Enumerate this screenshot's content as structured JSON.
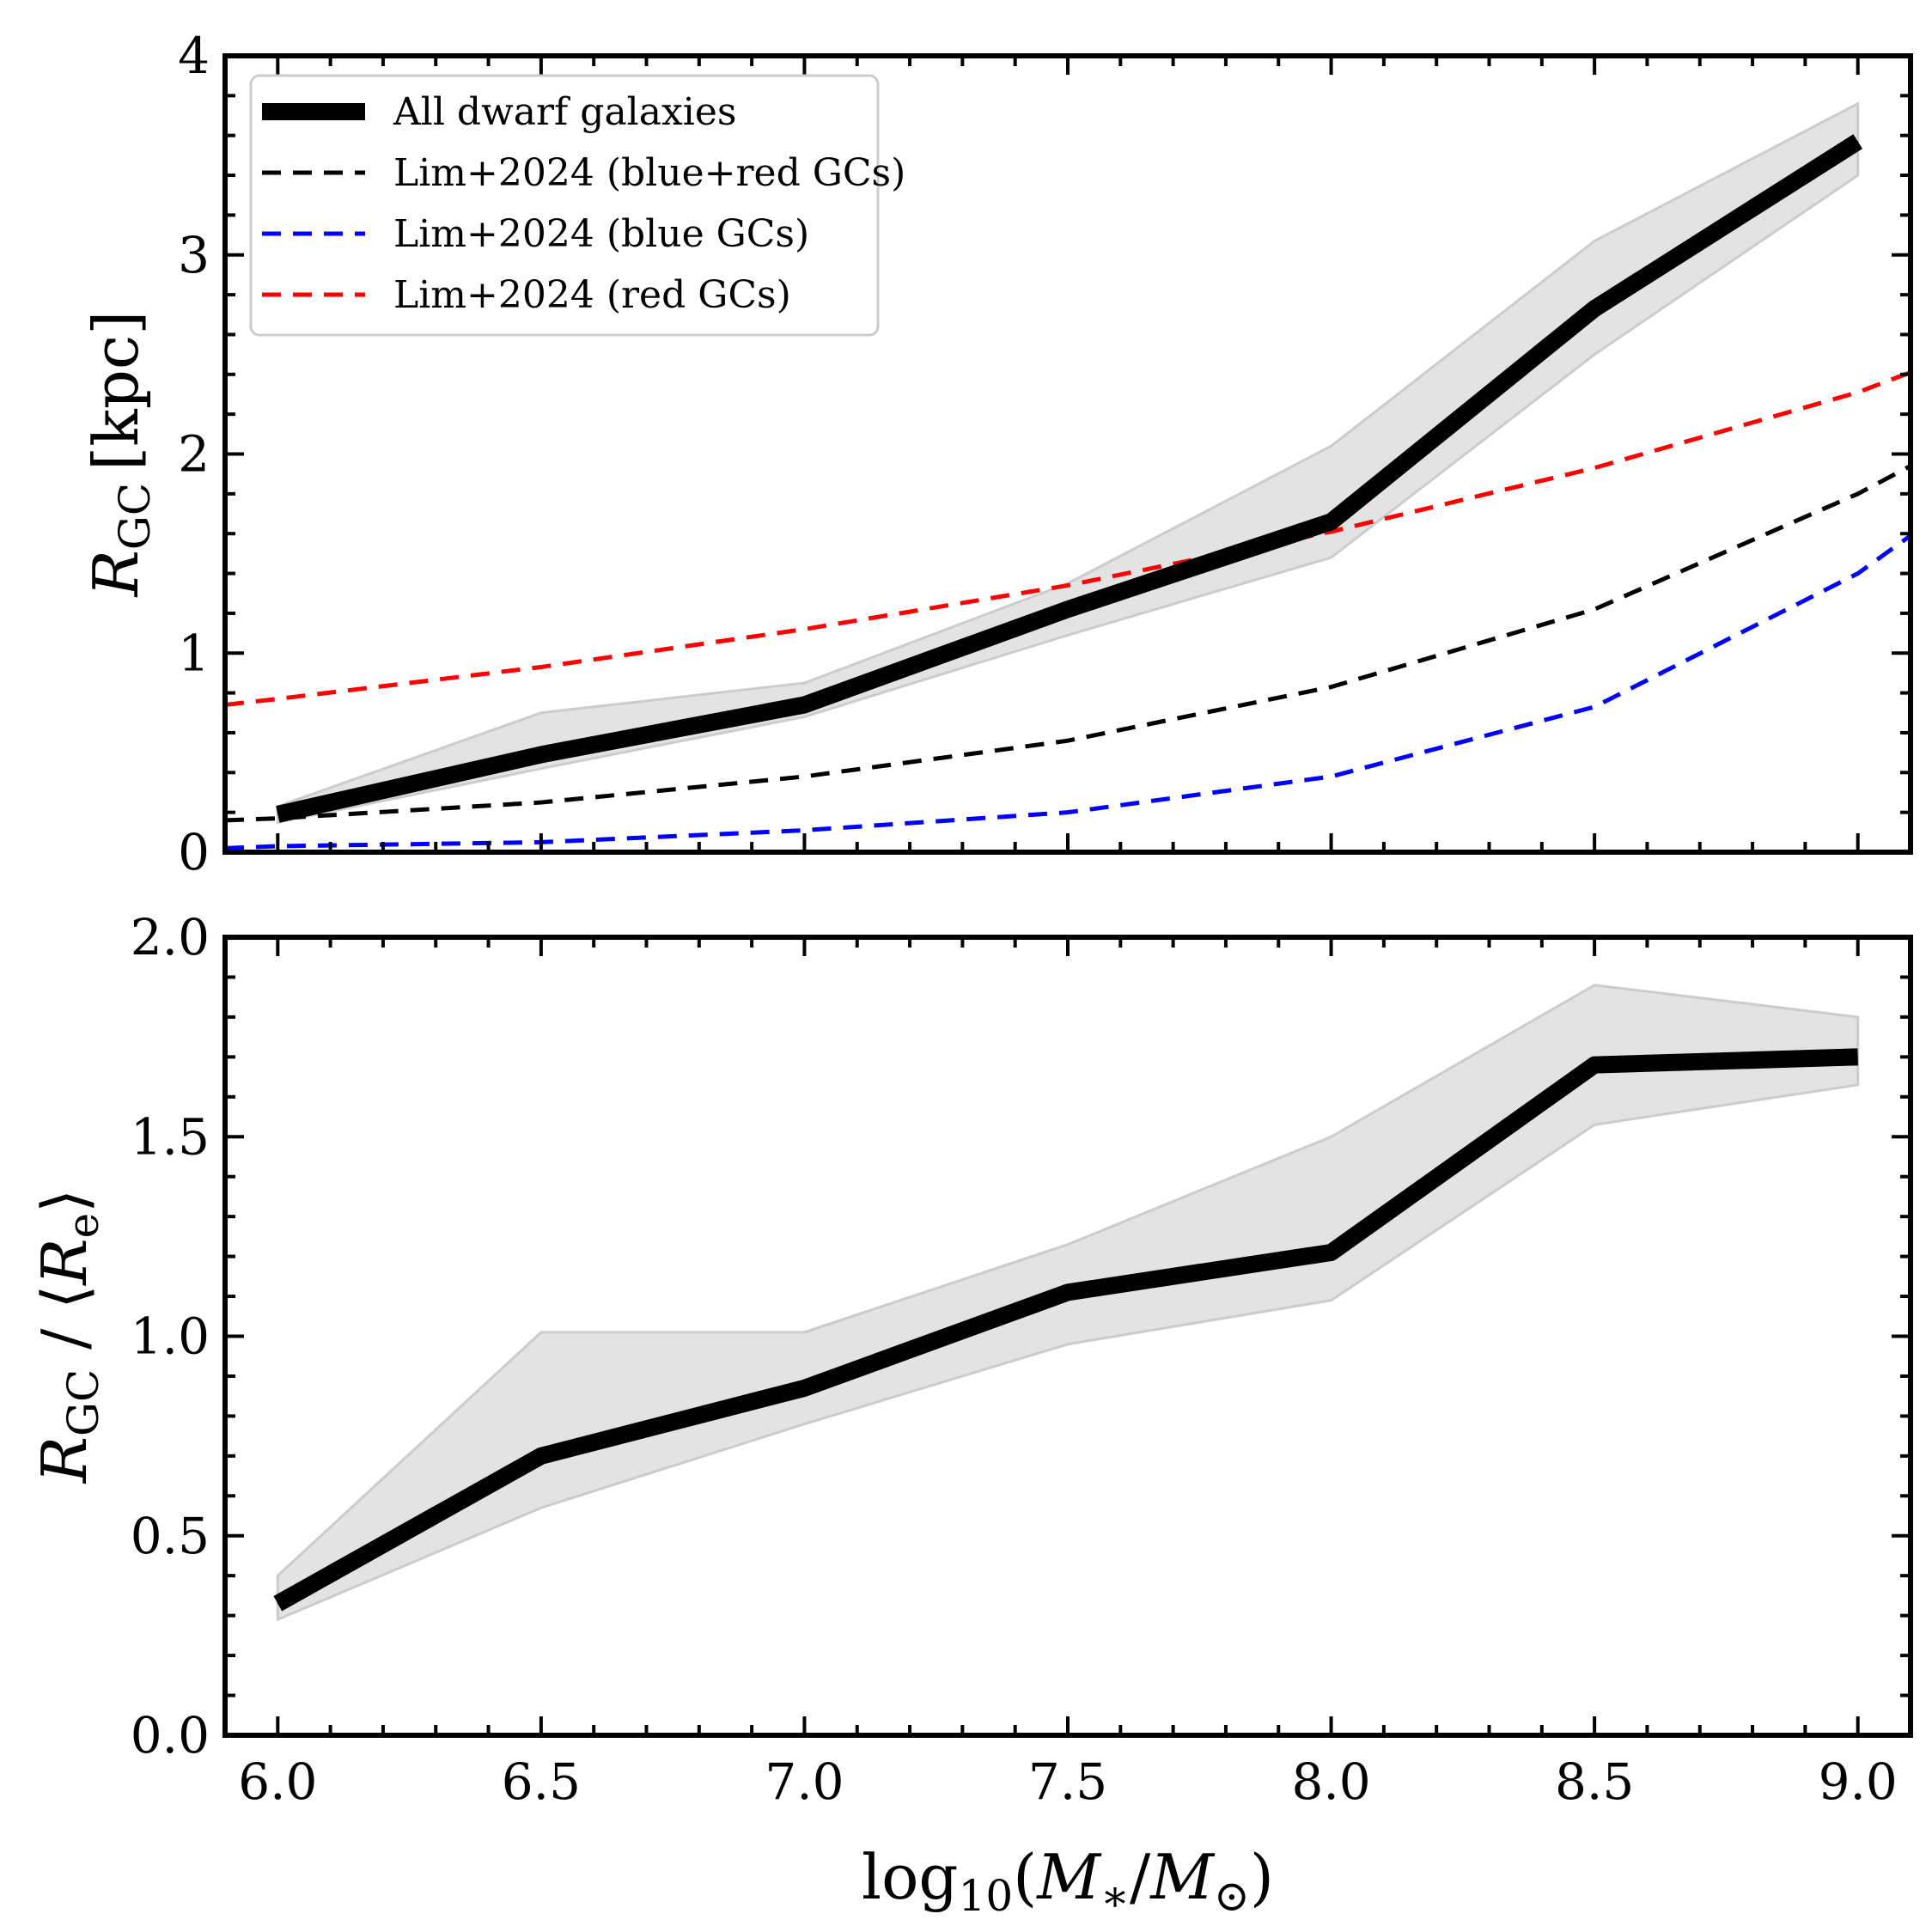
{
  "chart_data": [
    {
      "type": "line",
      "panel": "top",
      "ylabel": "R_GC [kpc]",
      "ylabel_parts": {
        "sym": "R",
        "sub": "GC",
        "unit": "[kpc]"
      },
      "xlim": [
        5.9,
        9.1
      ],
      "ylim": [
        0,
        4
      ],
      "xticks": [
        6.0,
        6.5,
        7.0,
        7.5,
        8.0,
        8.5,
        9.0
      ],
      "yticks": [
        0,
        1,
        2,
        3,
        4
      ],
      "ytick_labels": [
        "0",
        "1",
        "2",
        "3",
        "4"
      ],
      "legend_position": "top-left",
      "series": [
        {
          "name": "All dwarf galaxies",
          "color": "#000000",
          "style": "solid-thick",
          "x": [
            6.0,
            6.5,
            7.0,
            7.5,
            8.0,
            8.5,
            9.0
          ],
          "y": [
            0.19,
            0.49,
            0.74,
            1.22,
            1.66,
            2.73,
            3.57
          ],
          "band_lower": [
            0.15,
            0.42,
            0.68,
            1.09,
            1.48,
            2.5,
            3.4
          ],
          "band_upper": [
            0.23,
            0.7,
            0.85,
            1.35,
            2.04,
            3.07,
            3.76
          ]
        },
        {
          "name": "Lim+2024 (blue+red GCs)",
          "color": "#000000",
          "style": "dashed",
          "x": [
            5.9,
            6.0,
            6.5,
            7.0,
            7.5,
            8.0,
            8.5,
            9.0,
            9.1
          ],
          "y": [
            0.16,
            0.17,
            0.25,
            0.38,
            0.56,
            0.83,
            1.22,
            1.8,
            1.94
          ]
        },
        {
          "name": "Lim+2024 (blue GCs)",
          "color": "#0000ff",
          "style": "dashed",
          "x": [
            5.9,
            6.0,
            6.5,
            7.0,
            7.5,
            8.0,
            8.5,
            9.0,
            9.1
          ],
          "y": [
            0.02,
            0.03,
            0.05,
            0.11,
            0.2,
            0.38,
            0.73,
            1.4,
            1.59
          ]
        },
        {
          "name": "Lim+2024 (red GCs)",
          "color": "#ff0000",
          "style": "dashed",
          "x": [
            5.9,
            6.0,
            6.5,
            7.0,
            7.5,
            8.0,
            8.5,
            9.0,
            9.1
          ],
          "y": [
            0.74,
            0.77,
            0.93,
            1.12,
            1.34,
            1.61,
            1.93,
            2.31,
            2.41
          ]
        }
      ]
    },
    {
      "type": "line",
      "panel": "bottom",
      "ylabel": "R_GC / ⟨R_e⟩",
      "ylabel_parts": {
        "sym": "R",
        "sub": "GC",
        "mid": " / ⟨",
        "sym2": "R",
        "sub2": "e",
        "end": "⟩"
      },
      "xlabel": "log10(M*/M⊙)",
      "xlabel_parts": {
        "pre": "log",
        "sub": "10",
        "open": "(",
        "sym": "M",
        "sub2": "∗",
        "slash": "/",
        "sym2": "M",
        "sub3": "⊙",
        "close": ")"
      },
      "xlim": [
        5.9,
        9.1
      ],
      "ylim": [
        0,
        2
      ],
      "xticks": [
        6.0,
        6.5,
        7.0,
        7.5,
        8.0,
        8.5,
        9.0
      ],
      "xtick_labels": [
        "6.0",
        "6.5",
        "7.0",
        "7.5",
        "8.0",
        "8.5",
        "9.0"
      ],
      "yticks": [
        0.0,
        0.5,
        1.0,
        1.5,
        2.0
      ],
      "ytick_labels": [
        "0.0",
        "0.5",
        "1.0",
        "1.5",
        "2.0"
      ],
      "series": [
        {
          "name": "All dwarf galaxies",
          "color": "#000000",
          "style": "solid-thick",
          "x": [
            6.0,
            6.5,
            7.0,
            7.5,
            8.0,
            8.5,
            9.0
          ],
          "y": [
            0.33,
            0.7,
            0.87,
            1.11,
            1.21,
            1.68,
            1.7
          ],
          "band_lower": [
            0.29,
            0.57,
            0.78,
            0.98,
            1.09,
            1.53,
            1.63
          ],
          "band_upper": [
            0.4,
            1.01,
            1.01,
            1.23,
            1.5,
            1.88,
            1.8
          ]
        }
      ]
    }
  ],
  "colors": {
    "band": "#e3e3e3",
    "band_edge": "#cccccc",
    "frame": "#000000"
  }
}
